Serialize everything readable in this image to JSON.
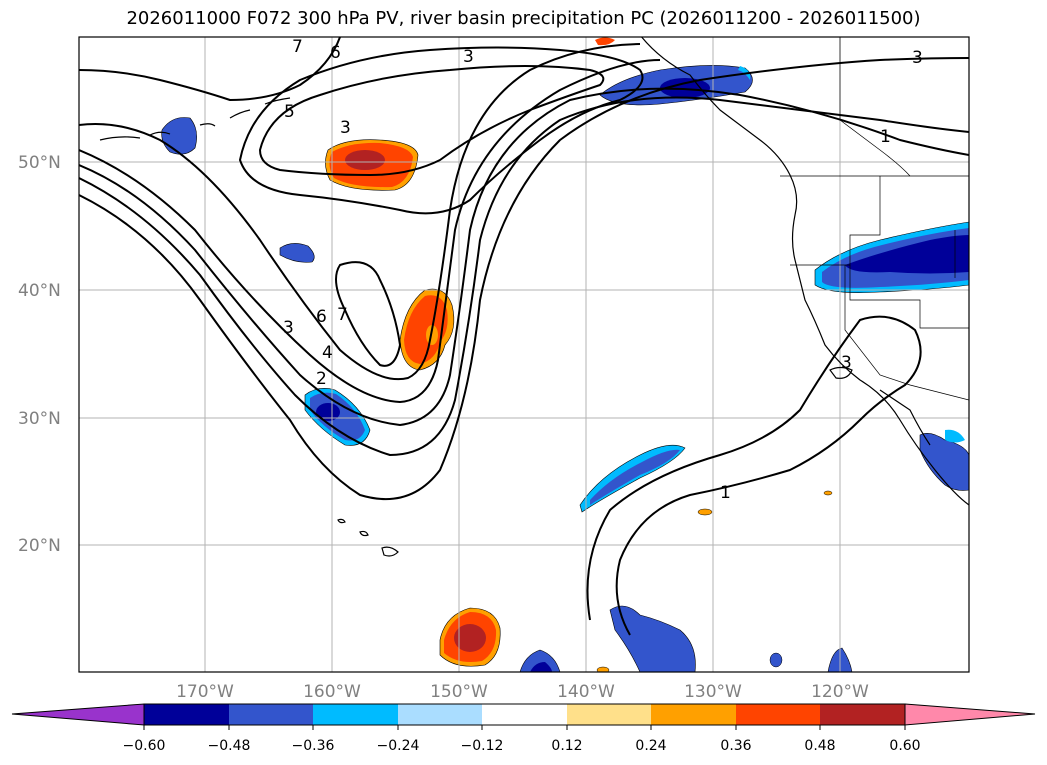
{
  "title": "2026011000 F072 300 hPa PV, river basin precipitation PC (2026011200 - 2026011500)",
  "map": {
    "lat_labels": [
      "50°N",
      "40°N",
      "30°N",
      "20°N"
    ],
    "lon_labels": [
      "170°W",
      "160°W",
      "150°W",
      "140°W",
      "130°W",
      "120°W"
    ],
    "contour_labels": [
      "7",
      "6",
      "5",
      "3",
      "3",
      "3",
      "1",
      "6",
      "7",
      "4",
      "3",
      "2",
      "3",
      "1"
    ]
  },
  "colorbar": {
    "ticks": [
      "−0.60",
      "−0.48",
      "−0.36",
      "−0.24",
      "−0.12",
      "0.12",
      "0.24",
      "0.36",
      "0.48",
      "0.60"
    ],
    "colors": [
      "#9933cc",
      "#000099",
      "#3355cc",
      "#00bbff",
      "#aaddff",
      "#ffffff",
      "#ffe08a",
      "#ffa000",
      "#ff4400",
      "#b22222",
      "#ff88aa"
    ]
  }
}
